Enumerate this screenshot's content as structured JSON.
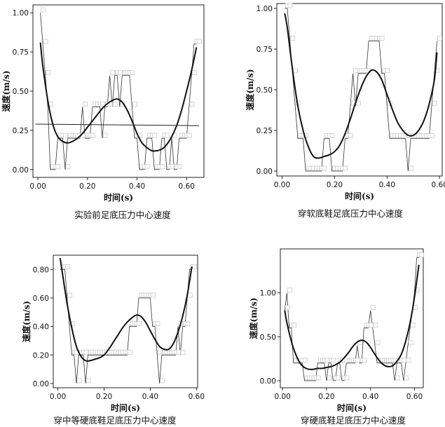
{
  "chart_data": [
    {
      "type": "line",
      "caption": "实验前足底压力中心速度",
      "xlabel": "时间(s)",
      "ylabel": "速度(m/s)",
      "xlim": [
        -0.02,
        0.67
      ],
      "ylim": [
        -0.05,
        1.05
      ],
      "xticks": [
        "0.00",
        "0.20",
        "0.40",
        "0.60"
      ],
      "xtick_values": [
        0.0,
        0.2,
        0.4,
        0.6
      ],
      "yticks": [
        "0.00",
        "0.25",
        "0.50",
        "0.75",
        "1.00"
      ],
      "ytick_values": [
        0.0,
        0.25,
        0.5,
        0.75,
        1.0
      ],
      "grid": false,
      "series": [
        {
          "style": "raw-step-with-square-markers",
          "x": [
            0.01,
            0.02,
            0.03,
            0.04,
            0.05,
            0.06,
            0.07,
            0.08,
            0.09,
            0.1,
            0.11,
            0.12,
            0.13,
            0.14,
            0.15,
            0.16,
            0.17,
            0.18,
            0.19,
            0.2,
            0.21,
            0.22,
            0.23,
            0.24,
            0.25,
            0.26,
            0.27,
            0.28,
            0.29,
            0.3,
            0.31,
            0.32,
            0.33,
            0.34,
            0.35,
            0.36,
            0.37,
            0.38,
            0.39,
            0.4,
            0.41,
            0.42,
            0.43,
            0.44,
            0.45,
            0.46,
            0.47,
            0.48,
            0.49,
            0.5,
            0.51,
            0.52,
            0.53,
            0.54,
            0.55,
            0.56,
            0.57,
            0.58,
            0.59,
            0.6,
            0.61,
            0.62,
            0.63,
            0.64
          ],
          "y": [
            1.0,
            0.8,
            0.6,
            0.4,
            0.0,
            0.0,
            0.0,
            0.2,
            0.2,
            0.2,
            0.0,
            0.2,
            0.2,
            0.2,
            0.2,
            0.2,
            0.2,
            0.4,
            0.2,
            0.2,
            0.2,
            0.4,
            0.4,
            0.4,
            0.4,
            0.2,
            0.4,
            0.4,
            0.6,
            0.4,
            0.6,
            0.6,
            0.4,
            0.6,
            0.6,
            0.6,
            0.6,
            0.4,
            0.2,
            0.2,
            0.0,
            0.0,
            0.0,
            0.2,
            0.2,
            0.2,
            0.0,
            0.0,
            0.0,
            0.2,
            0.2,
            0.0,
            0.0,
            0.2,
            0.0,
            0.0,
            0.2,
            0.2,
            0.2,
            0.2,
            0.4,
            0.6,
            0.8,
            0.8
          ]
        },
        {
          "style": "smooth-fit",
          "x": [
            0.01,
            0.02,
            0.04,
            0.06,
            0.08,
            0.1,
            0.12,
            0.14,
            0.16,
            0.18,
            0.2,
            0.22,
            0.24,
            0.26,
            0.28,
            0.3,
            0.32,
            0.34,
            0.36,
            0.38,
            0.4,
            0.42,
            0.44,
            0.46,
            0.48,
            0.5,
            0.52,
            0.54,
            0.56,
            0.58,
            0.6,
            0.62,
            0.64
          ],
          "y": [
            0.81,
            0.66,
            0.44,
            0.29,
            0.21,
            0.18,
            0.17,
            0.18,
            0.2,
            0.23,
            0.27,
            0.31,
            0.35,
            0.39,
            0.42,
            0.44,
            0.45,
            0.43,
            0.38,
            0.31,
            0.23,
            0.17,
            0.14,
            0.12,
            0.12,
            0.13,
            0.16,
            0.21,
            0.28,
            0.38,
            0.5,
            0.63,
            0.78
          ]
        },
        {
          "style": "mean-line",
          "x": [
            -0.01,
            0.65
          ],
          "y": [
            0.29,
            0.28
          ]
        }
      ]
    },
    {
      "type": "line",
      "caption": "穿软底鞋足底压力中心速度",
      "xlabel": "时间(s)",
      "ylabel": "速度(m/s)",
      "xlim": [
        -0.02,
        0.61
      ],
      "ylim": [
        -0.03,
        1.03
      ],
      "xticks": [
        "0.00",
        "0.20",
        "0.40",
        "0.60"
      ],
      "xtick_values": [
        0.0,
        0.2,
        0.4,
        0.6
      ],
      "yticks": [
        "0.00",
        "0.25",
        "0.50",
        "0.75",
        "1.00"
      ],
      "ytick_values": [
        0.0,
        0.25,
        0.5,
        0.75,
        1.0
      ],
      "grid": false,
      "series": [
        {
          "style": "raw-step-with-square-markers",
          "x": [
            0.01,
            0.02,
            0.03,
            0.04,
            0.05,
            0.06,
            0.07,
            0.08,
            0.09,
            0.1,
            0.11,
            0.12,
            0.13,
            0.14,
            0.15,
            0.16,
            0.17,
            0.18,
            0.19,
            0.2,
            0.21,
            0.22,
            0.23,
            0.24,
            0.25,
            0.26,
            0.27,
            0.28,
            0.29,
            0.3,
            0.31,
            0.32,
            0.33,
            0.34,
            0.35,
            0.36,
            0.37,
            0.38,
            0.39,
            0.4,
            0.41,
            0.42,
            0.43,
            0.44,
            0.45,
            0.46,
            0.47,
            0.48,
            0.49,
            0.5,
            0.51,
            0.52,
            0.53,
            0.54,
            0.55,
            0.56,
            0.57,
            0.58,
            0.59
          ],
          "y": [
            1.0,
            1.0,
            0.8,
            0.6,
            0.4,
            0.2,
            0.2,
            0.2,
            0.0,
            0.0,
            0.0,
            0.0,
            0.0,
            0.0,
            0.0,
            0.2,
            0.2,
            0.2,
            0.0,
            0.0,
            0.0,
            0.0,
            0.0,
            0.2,
            0.2,
            0.4,
            0.6,
            0.4,
            0.6,
            0.6,
            0.6,
            0.6,
            0.8,
            0.8,
            0.8,
            0.8,
            0.8,
            0.6,
            0.6,
            0.4,
            0.2,
            0.2,
            0.2,
            0.2,
            0.2,
            0.2,
            0.2,
            0.0,
            0.2,
            0.2,
            0.2,
            0.2,
            0.2,
            0.2,
            0.2,
            0.2,
            0.4,
            0.6,
            0.8
          ]
        },
        {
          "style": "smooth-fit",
          "x": [
            0.01,
            0.02,
            0.04,
            0.06,
            0.08,
            0.1,
            0.12,
            0.14,
            0.16,
            0.18,
            0.2,
            0.22,
            0.24,
            0.26,
            0.28,
            0.3,
            0.32,
            0.34,
            0.36,
            0.38,
            0.4,
            0.42,
            0.44,
            0.46,
            0.48,
            0.5,
            0.52,
            0.54,
            0.56,
            0.58,
            0.59
          ],
          "y": [
            0.97,
            0.88,
            0.62,
            0.4,
            0.25,
            0.15,
            0.09,
            0.08,
            0.09,
            0.1,
            0.12,
            0.16,
            0.23,
            0.32,
            0.42,
            0.51,
            0.58,
            0.62,
            0.61,
            0.56,
            0.47,
            0.38,
            0.3,
            0.25,
            0.22,
            0.22,
            0.25,
            0.31,
            0.41,
            0.56,
            0.73
          ]
        }
      ]
    },
    {
      "type": "line",
      "caption": "穿中等硬底鞋足底压力中心速度",
      "xlabel": "时间(s)",
      "ylabel": "速度(m/s)",
      "xlim": [
        -0.02,
        0.605
      ],
      "ylim": [
        -0.03,
        0.9
      ],
      "xticks": [
        "0.00",
        "0.20",
        "0.40",
        "0.60"
      ],
      "xtick_values": [
        0.0,
        0.2,
        0.4,
        0.6
      ],
      "yticks": [
        "0.00",
        "0.20",
        "0.40",
        "0.60",
        "0.80"
      ],
      "ytick_values": [
        0.0,
        0.2,
        0.4,
        0.6,
        0.8
      ],
      "grid": false,
      "series": [
        {
          "style": "raw-step-with-square-markers",
          "x": [
            0.01,
            0.02,
            0.03,
            0.04,
            0.05,
            0.06,
            0.07,
            0.08,
            0.09,
            0.1,
            0.11,
            0.12,
            0.13,
            0.14,
            0.15,
            0.16,
            0.17,
            0.18,
            0.19,
            0.2,
            0.21,
            0.22,
            0.23,
            0.24,
            0.25,
            0.26,
            0.27,
            0.28,
            0.29,
            0.3,
            0.31,
            0.32,
            0.33,
            0.34,
            0.35,
            0.36,
            0.37,
            0.38,
            0.39,
            0.4,
            0.41,
            0.42,
            0.43,
            0.44,
            0.45,
            0.46,
            0.47,
            0.48,
            0.49,
            0.5,
            0.51,
            0.52,
            0.53,
            0.54,
            0.55,
            0.56,
            0.57,
            0.58
          ],
          "y": [
            0.8,
            0.8,
            0.8,
            0.6,
            0.4,
            0.2,
            0.2,
            0.0,
            0.2,
            0.2,
            0.2,
            0.0,
            0.2,
            0.2,
            0.2,
            0.2,
            0.2,
            0.2,
            0.2,
            0.2,
            0.2,
            0.2,
            0.2,
            0.2,
            0.2,
            0.2,
            0.2,
            0.2,
            0.2,
            0.2,
            0.4,
            0.4,
            0.4,
            0.4,
            0.6,
            0.6,
            0.6,
            0.6,
            0.6,
            0.6,
            0.4,
            0.4,
            0.2,
            0.0,
            0.2,
            0.2,
            0.2,
            0.2,
            0.2,
            0.2,
            0.2,
            0.4,
            0.2,
            0.4,
            0.4,
            0.6,
            0.8,
            0.8
          ]
        },
        {
          "style": "smooth-fit",
          "x": [
            0.01,
            0.02,
            0.04,
            0.06,
            0.08,
            0.1,
            0.12,
            0.14,
            0.16,
            0.18,
            0.2,
            0.22,
            0.24,
            0.26,
            0.28,
            0.3,
            0.32,
            0.34,
            0.36,
            0.38,
            0.4,
            0.42,
            0.44,
            0.46,
            0.48,
            0.5,
            0.52,
            0.54,
            0.56,
            0.58
          ],
          "y": [
            0.88,
            0.77,
            0.56,
            0.39,
            0.26,
            0.19,
            0.16,
            0.16,
            0.17,
            0.18,
            0.2,
            0.24,
            0.29,
            0.34,
            0.39,
            0.43,
            0.46,
            0.48,
            0.47,
            0.43,
            0.37,
            0.31,
            0.26,
            0.24,
            0.24,
            0.28,
            0.36,
            0.47,
            0.62,
            0.82
          ]
        }
      ]
    },
    {
      "type": "line",
      "caption": "穿硬底鞋足底压力中心速度",
      "xlabel": "时间(s)",
      "ylabel": "速度(m/s)",
      "xlim": [
        -0.01,
        0.64
      ],
      "ylim": [
        -0.08,
        1.5
      ],
      "xticks": [
        "0.00",
        "0.20",
        "0.40",
        "0.60"
      ],
      "xtick_values": [
        0.0,
        0.2,
        0.4,
        0.6
      ],
      "yticks": [
        "0.00",
        "0.50",
        "1.00"
      ],
      "ytick_values": [
        0.0,
        0.5,
        1.0
      ],
      "grid": false,
      "series": [
        {
          "style": "raw-step-with-square-markers",
          "x": [
            0.01,
            0.02,
            0.03,
            0.04,
            0.05,
            0.06,
            0.07,
            0.08,
            0.09,
            0.1,
            0.11,
            0.12,
            0.13,
            0.14,
            0.15,
            0.16,
            0.17,
            0.18,
            0.19,
            0.2,
            0.21,
            0.22,
            0.23,
            0.24,
            0.25,
            0.26,
            0.27,
            0.28,
            0.29,
            0.3,
            0.31,
            0.32,
            0.33,
            0.34,
            0.35,
            0.36,
            0.37,
            0.38,
            0.39,
            0.4,
            0.41,
            0.42,
            0.43,
            0.44,
            0.45,
            0.46,
            0.47,
            0.48,
            0.49,
            0.5,
            0.51,
            0.52,
            0.53,
            0.54,
            0.55,
            0.56,
            0.57,
            0.58,
            0.59,
            0.6,
            0.61,
            0.62
          ],
          "y": [
            0.8,
            1.0,
            0.6,
            0.6,
            0.2,
            0.2,
            0.2,
            0.2,
            0.2,
            0.0,
            0.0,
            0.0,
            0.0,
            0.0,
            0.0,
            0.2,
            0.2,
            0.2,
            0.2,
            0.0,
            0.2,
            0.2,
            0.0,
            0.0,
            0.2,
            0.2,
            0.0,
            0.0,
            0.2,
            0.2,
            0.2,
            0.2,
            0.2,
            0.4,
            0.2,
            0.2,
            0.6,
            0.6,
            0.6,
            0.8,
            0.6,
            0.4,
            0.2,
            0.2,
            0.2,
            0.2,
            0.2,
            0.2,
            0.2,
            0.2,
            0.0,
            0.2,
            0.2,
            0.2,
            0.0,
            0.2,
            0.4,
            0.6,
            0.8,
            1.0,
            1.4,
            1.4
          ]
        },
        {
          "style": "smooth-fit",
          "x": [
            0.01,
            0.02,
            0.04,
            0.06,
            0.08,
            0.1,
            0.12,
            0.14,
            0.16,
            0.18,
            0.2,
            0.22,
            0.24,
            0.26,
            0.28,
            0.3,
            0.32,
            0.34,
            0.36,
            0.38,
            0.4,
            0.42,
            0.44,
            0.46,
            0.48,
            0.5,
            0.52,
            0.54,
            0.56,
            0.58,
            0.6,
            0.62
          ],
          "y": [
            0.8,
            0.66,
            0.45,
            0.3,
            0.2,
            0.15,
            0.13,
            0.13,
            0.14,
            0.14,
            0.15,
            0.16,
            0.18,
            0.21,
            0.26,
            0.32,
            0.39,
            0.44,
            0.46,
            0.44,
            0.38,
            0.3,
            0.23,
            0.18,
            0.16,
            0.17,
            0.22,
            0.3,
            0.45,
            0.66,
            0.95,
            1.32
          ]
        }
      ]
    }
  ]
}
